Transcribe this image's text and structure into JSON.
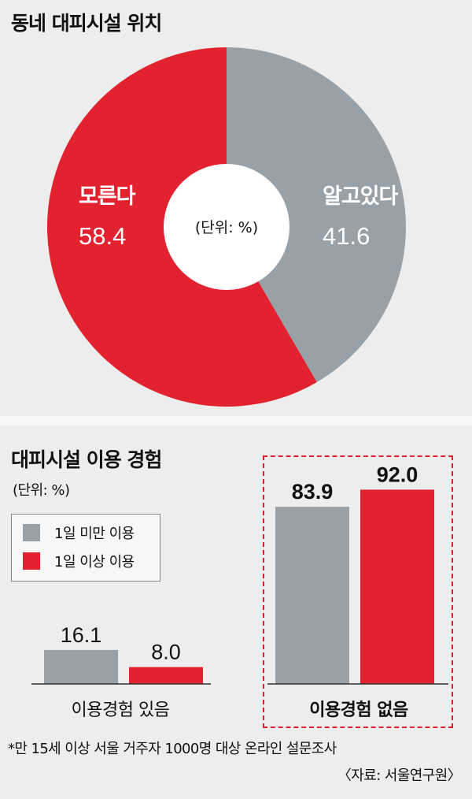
{
  "colors": {
    "gray": "#98a1a8",
    "red": "#e3222f"
  },
  "chart_data": [
    {
      "type": "pie",
      "title": "동네 대피시설 위치",
      "center_label": "(단위: %)",
      "slices": [
        {
          "label": "알고있다",
          "value": 41.6,
          "color": "#98a1a8"
        },
        {
          "label": "모른다",
          "value": 58.4,
          "color": "#e3222f"
        }
      ]
    },
    {
      "type": "bar",
      "title": "대피시설 이용 경험",
      "unit": "(단위: %)",
      "categories": [
        "이용경험 있음",
        "이용경험 없음"
      ],
      "series": [
        {
          "name": "1일 미만 이용",
          "values": [
            16.1,
            83.9
          ],
          "color": "#98a1a8"
        },
        {
          "name": "1일 이상 이용",
          "values": [
            8.0,
            92.0
          ],
          "color": "#e3222f"
        }
      ],
      "ylim": [
        0,
        100
      ],
      "highlighted_category": "이용경험 없음"
    }
  ],
  "footnote": "*만 15세 이상 서울 거주자 1000명 대상 온라인 설문조사",
  "source": "〈자료: 서울연구원〉"
}
